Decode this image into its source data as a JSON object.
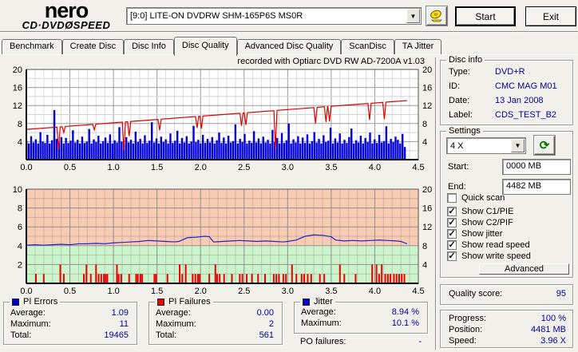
{
  "logo": {
    "line1": "nero",
    "cd_dvd": "CD·DVD",
    "disc": "Ø",
    "speed": "SPEED"
  },
  "topbar": {
    "drive": "[9:0]  LITE-ON DVDRW SHM-165P6S MS0R",
    "start_button": "Start",
    "exit_button": "Exit"
  },
  "icons": {
    "dropdown_arrow": "▼",
    "refresh": "⟳",
    "check": "✓"
  },
  "tabs": [
    {
      "label": "Benchmark"
    },
    {
      "label": "Create Disc"
    },
    {
      "label": "Disc Info"
    },
    {
      "label": "Disc Quality"
    },
    {
      "label": "Advanced Disc Quality"
    },
    {
      "label": "ScanDisc"
    },
    {
      "label": "TA Jitter"
    }
  ],
  "chart_title": "recorded with Optiarc DVD RW AD-7200A  v1.03",
  "chart_data": [
    {
      "type": "bar",
      "name": "pi-errors-and-write-speed",
      "xlabel": "GB",
      "xlim": [
        0,
        4.5
      ],
      "ylim": [
        0,
        20
      ],
      "yticks": [
        4,
        8,
        12,
        16,
        20
      ],
      "xticks": [
        "0.0",
        "0.5",
        "1.0",
        "1.5",
        "2.0",
        "2.5",
        "3.0",
        "3.5",
        "4.0",
        "4.5"
      ],
      "bar_color": "#0000dd",
      "line_color": "#dd0000",
      "bars_x_end": 4.37,
      "bar_values": [
        4.1,
        3.6,
        5.2,
        3.8,
        4.5,
        3.6,
        6.1,
        4.0,
        3.7,
        5.5,
        3.6,
        4.3,
        11.0,
        4.6,
        3.8,
        5.0,
        3.6,
        4.8,
        3.7,
        4.2,
        6.5,
        3.8,
        4.4,
        3.6,
        5.1,
        3.7,
        4.0,
        6.8,
        3.6,
        4.5,
        3.9,
        5.3,
        3.6,
        4.1,
        4.9,
        3.7,
        5.6,
        3.6,
        4.3,
        3.8,
        7.2,
        4.0,
        3.6,
        5.0,
        3.8,
        4.4,
        3.6,
        6.2,
        3.9,
        4.6,
        3.6,
        5.4,
        3.7,
        4.2,
        8.3,
        3.8,
        4.7,
        3.6,
        5.1,
        3.9,
        4.5,
        3.6,
        5.8,
        3.7,
        4.2,
        6.4,
        3.6,
        4.8,
        3.8,
        5.2,
        3.6,
        4.0,
        7.5,
        3.9,
        4.4,
        3.6,
        5.5,
        3.7,
        4.6,
        3.8,
        5.0,
        3.6,
        4.3,
        6.0,
        3.7,
        4.9,
        3.6,
        5.3,
        3.8,
        4.1,
        7.8,
        3.6,
        4.6,
        3.9,
        5.7,
        3.6,
        4.2,
        3.7,
        6.3,
        3.8,
        4.7,
        3.6,
        5.1,
        3.8,
        4.4,
        3.6,
        6.6,
        3.9,
        4.8,
        3.6,
        5.9,
        3.7,
        4.3,
        8.0,
        3.6,
        4.5,
        3.8,
        5.2,
        3.6,
        4.9,
        3.7,
        5.6,
        3.6,
        4.1,
        6.1,
        3.8,
        4.6,
        3.6,
        5.4,
        3.9,
        4.2,
        7.1,
        3.6,
        4.7,
        3.8,
        5.8,
        3.6,
        4.4,
        3.7,
        5.0,
        6.9,
        3.6,
        4.3,
        3.8,
        5.3,
        3.6,
        4.8,
        3.9,
        6.0,
        3.6,
        4.5,
        3.7,
        5.5,
        3.8,
        4.1,
        7.4,
        3.6,
        4.6,
        3.9,
        5.1,
        4.4,
        3.6,
        5.7,
        2.8
      ],
      "write_speed": {
        "start": [
          0,
          6.7
        ],
        "end": [
          4.37,
          13.1
        ],
        "dips": [
          [
            0.37,
            2.2
          ],
          [
            0.43,
            6.0
          ],
          [
            0.78,
            6.6
          ],
          [
            1.12,
            2.0
          ],
          [
            1.18,
            5.2
          ],
          [
            1.53,
            6.5
          ],
          [
            1.96,
            7.0
          ],
          [
            2.01,
            6.9
          ],
          [
            2.47,
            7.5
          ],
          [
            2.52,
            7.7
          ],
          [
            2.86,
            2.5
          ],
          [
            3.32,
            8.0
          ],
          [
            3.44,
            8.3
          ],
          [
            3.48,
            8.5
          ],
          [
            3.94,
            8.8
          ],
          [
            4.11,
            9.0
          ]
        ]
      }
    },
    {
      "type": "line",
      "name": "pi-failures-and-jitter",
      "xlim": [
        0,
        4.5
      ],
      "ylim": [
        0,
        10
      ],
      "right_ylim": [
        0,
        20
      ],
      "yticks": [
        2,
        4,
        6,
        8,
        10
      ],
      "right_yticks": [
        4,
        8,
        12,
        16,
        20
      ],
      "xticks": [
        "0.0",
        "0.5",
        "1.0",
        "1.5",
        "2.0",
        "2.5",
        "3.0",
        "3.5",
        "4.0",
        "4.5"
      ],
      "zone_green": [
        0,
        4
      ],
      "zone_pink": [
        4,
        10
      ],
      "zone_green_color": "#ccf4cc",
      "zone_pink_color": "#f8cbb3",
      "jitter_color": "#2222cc",
      "pif_color": "#ee0000",
      "jitter_points": [
        [
          0,
          4.05
        ],
        [
          0.1,
          4.1
        ],
        [
          0.2,
          4.05
        ],
        [
          0.3,
          4.1
        ],
        [
          0.4,
          4.15
        ],
        [
          0.5,
          4.1
        ],
        [
          0.6,
          4.2
        ],
        [
          0.7,
          4.2
        ],
        [
          0.8,
          4.25
        ],
        [
          0.9,
          4.2
        ],
        [
          1.0,
          4.3
        ],
        [
          1.1,
          4.35
        ],
        [
          1.2,
          4.4
        ],
        [
          1.3,
          4.45
        ],
        [
          1.4,
          4.55
        ],
        [
          1.5,
          4.5
        ],
        [
          1.6,
          4.45
        ],
        [
          1.7,
          4.4
        ],
        [
          1.75,
          4.45
        ],
        [
          1.85,
          4.85
        ],
        [
          1.95,
          4.9
        ],
        [
          2.05,
          5.0
        ],
        [
          2.1,
          4.95
        ],
        [
          2.15,
          4.4
        ],
        [
          2.25,
          4.45
        ],
        [
          2.35,
          4.5
        ],
        [
          2.45,
          4.55
        ],
        [
          2.55,
          4.5
        ],
        [
          2.65,
          4.45
        ],
        [
          2.75,
          4.5
        ],
        [
          2.85,
          4.45
        ],
        [
          2.95,
          4.4
        ],
        [
          3.0,
          4.45
        ],
        [
          3.1,
          4.6
        ],
        [
          3.2,
          5.0
        ],
        [
          3.3,
          5.15
        ],
        [
          3.4,
          5.1
        ],
        [
          3.5,
          4.95
        ],
        [
          3.55,
          4.6
        ],
        [
          3.65,
          4.5
        ],
        [
          3.75,
          4.55
        ],
        [
          3.85,
          4.5
        ],
        [
          3.95,
          4.55
        ],
        [
          4.05,
          4.6
        ],
        [
          4.15,
          4.55
        ],
        [
          4.25,
          4.5
        ],
        [
          4.3,
          4.45
        ],
        [
          4.37,
          4.2
        ]
      ],
      "pif_bars": [
        [
          0.11,
          1
        ],
        [
          0.2,
          1
        ],
        [
          0.39,
          2
        ],
        [
          0.43,
          1
        ],
        [
          0.66,
          1
        ],
        [
          0.69,
          2
        ],
        [
          0.74,
          1
        ],
        [
          0.8,
          2
        ],
        [
          0.83,
          1
        ],
        [
          0.86,
          1
        ],
        [
          0.89,
          1
        ],
        [
          0.91,
          1
        ],
        [
          0.93,
          1
        ],
        [
          1.04,
          2
        ],
        [
          1.06,
          1
        ],
        [
          1.09,
          1
        ],
        [
          1.18,
          1
        ],
        [
          1.26,
          1
        ],
        [
          1.28,
          1
        ],
        [
          1.31,
          1
        ],
        [
          1.33,
          1
        ],
        [
          1.47,
          1
        ],
        [
          1.49,
          1
        ],
        [
          1.62,
          1
        ],
        [
          1.76,
          2
        ],
        [
          1.79,
          1
        ],
        [
          1.83,
          2
        ],
        [
          1.91,
          1
        ],
        [
          1.94,
          1
        ],
        [
          1.97,
          1
        ],
        [
          1.99,
          1
        ],
        [
          2.1,
          1
        ],
        [
          2.17,
          2
        ],
        [
          2.19,
          1
        ],
        [
          2.22,
          1
        ],
        [
          2.27,
          1
        ],
        [
          2.36,
          1
        ],
        [
          2.45,
          1
        ],
        [
          2.48,
          1
        ],
        [
          2.53,
          1
        ],
        [
          2.59,
          1
        ],
        [
          2.66,
          1
        ],
        [
          2.74,
          1
        ],
        [
          2.84,
          1
        ],
        [
          2.87,
          1
        ],
        [
          2.9,
          1
        ],
        [
          2.95,
          1
        ],
        [
          2.98,
          1
        ],
        [
          3.05,
          2
        ],
        [
          3.1,
          1
        ],
        [
          3.16,
          1
        ],
        [
          3.19,
          1
        ],
        [
          3.23,
          1
        ],
        [
          3.27,
          1
        ],
        [
          3.37,
          1
        ],
        [
          3.42,
          1
        ],
        [
          3.6,
          2
        ],
        [
          3.65,
          1
        ],
        [
          3.78,
          1
        ],
        [
          3.97,
          2
        ],
        [
          4.02,
          2
        ],
        [
          4.05,
          1
        ],
        [
          4.08,
          2
        ],
        [
          4.12,
          1
        ],
        [
          4.15,
          1
        ],
        [
          4.18,
          1
        ],
        [
          4.22,
          1
        ],
        [
          4.25,
          1
        ],
        [
          4.28,
          1
        ],
        [
          4.31,
          1
        ],
        [
          4.34,
          1
        ]
      ]
    }
  ],
  "disc_info": {
    "title": "Disc info",
    "rows": [
      {
        "label": "Type:",
        "value": "DVD+R"
      },
      {
        "label": "ID:",
        "value": "CMC MAG M01"
      },
      {
        "label": "Date:",
        "value": "13 Jan 2008"
      },
      {
        "label": "Label:",
        "value": "CDS_TEST_B2"
      }
    ]
  },
  "settings": {
    "title": "Settings",
    "speed_value": "4 X",
    "start_label": "Start:",
    "start_value": "0000 MB",
    "end_label": "End:",
    "end_value": "4482 MB",
    "checkboxes": [
      {
        "label": "Quick scan",
        "mark": ""
      },
      {
        "label": "Show C1/PIE",
        "mark": "✓"
      },
      {
        "label": "Show C2/PIF",
        "mark": "✓"
      },
      {
        "label": "Show jitter",
        "mark": "✓"
      },
      {
        "label": "Show read speed",
        "mark": "✓"
      },
      {
        "label": "Show write speed",
        "mark": "✓"
      }
    ],
    "advanced_button": "Advanced"
  },
  "quality": {
    "label": "Quality score:",
    "value": "95"
  },
  "progress": {
    "rows": [
      {
        "label": "Progress:",
        "value": "100 %"
      },
      {
        "label": "Position:",
        "value": "4481 MB"
      },
      {
        "label": "Speed:",
        "value": "3.96 X"
      }
    ]
  },
  "stats": [
    {
      "title": "PI Errors",
      "swatch": "#0000cc",
      "rows": [
        {
          "label": "Average:",
          "value": "1.09"
        },
        {
          "label": "Maximum:",
          "value": "11"
        },
        {
          "label": "Total:",
          "value": "19465"
        }
      ]
    },
    {
      "title": "PI Failures",
      "swatch": "#ee0000",
      "rows": [
        {
          "label": "Average:",
          "value": "0.00"
        },
        {
          "label": "Maximum:",
          "value": "2"
        },
        {
          "label": "Total:",
          "value": "561"
        }
      ]
    },
    {
      "title": "Jitter",
      "swatch": "#0000cc",
      "rows": [
        {
          "label": "Average:",
          "value": "8.94 %"
        },
        {
          "label": "Maximum:",
          "value": "10.1 %"
        }
      ]
    }
  ],
  "po_failures": {
    "label": "PO failures:",
    "value": "-"
  }
}
